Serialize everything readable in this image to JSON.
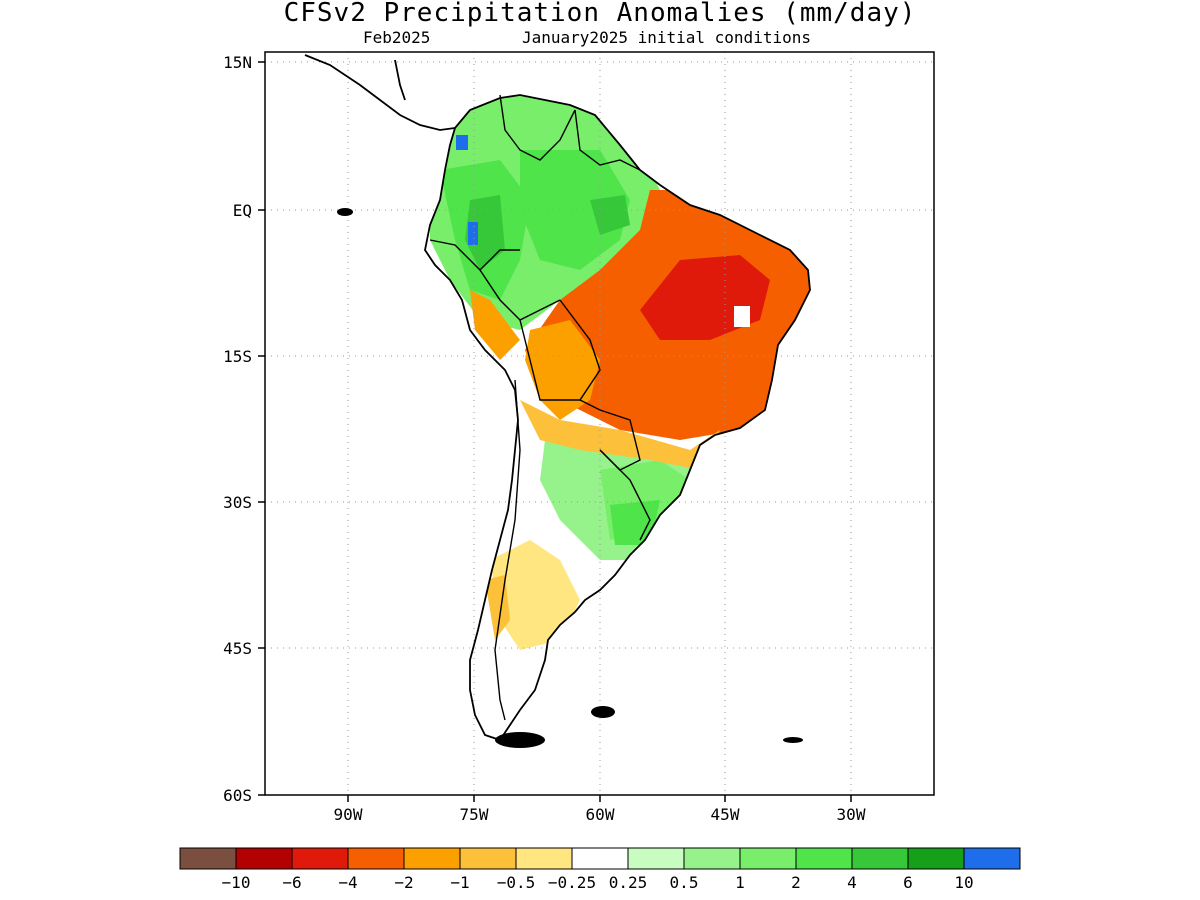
{
  "title": "CFSv2 Precipitation Anomalies (mm/day)",
  "subtitle_left": "Feb2025",
  "subtitle_right": "January2025 initial conditions",
  "map": {
    "lat_labels": [
      "15N",
      "EQ",
      "15S",
      "30S",
      "45S",
      "60S"
    ],
    "lon_labels": [
      "90W",
      "75W",
      "60W",
      "45W",
      "30W"
    ],
    "land_color": "#ffffff",
    "outline_color": "#000000",
    "grid": "dotted"
  },
  "colorbar": {
    "colors": [
      "#7a4f3f",
      "#b30000",
      "#e01a0a",
      "#f55f00",
      "#fca000",
      "#fcc03a",
      "#ffe680",
      "#ffffff",
      "#c8fcc0",
      "#96f38c",
      "#78ee6a",
      "#4ee44a",
      "#37c83a",
      "#16a01a",
      "#1e6eeb"
    ],
    "labels": [
      "-10",
      "-6",
      "-4",
      "-2",
      "-1",
      "-0.5",
      "-0.25",
      "0.25",
      "0.5",
      "1",
      "2",
      "4",
      "6",
      "10"
    ]
  }
}
